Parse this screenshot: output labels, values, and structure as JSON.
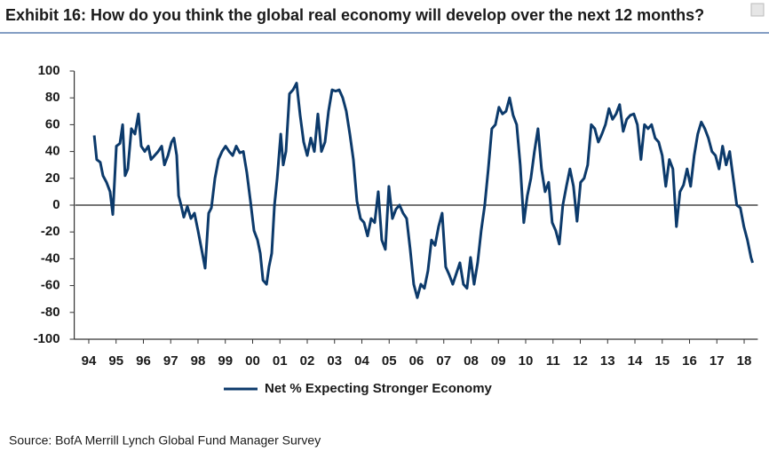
{
  "chart_data": {
    "type": "line",
    "title": "Exhibit 16: How do you think the global real economy will develop over the next 12 months?",
    "source": "Source: BofA Merrill Lynch Global Fund Manager Survey",
    "xlim": [
      1994,
      2019
    ],
    "xticks": [
      {
        "value": 1994.5,
        "label": "94"
      },
      {
        "value": 1995.5,
        "label": "95"
      },
      {
        "value": 1996.5,
        "label": "96"
      },
      {
        "value": 1997.5,
        "label": "97"
      },
      {
        "value": 1998.5,
        "label": "98"
      },
      {
        "value": 1999.5,
        "label": "99"
      },
      {
        "value": 2000.5,
        "label": "00"
      },
      {
        "value": 2001.5,
        "label": "01"
      },
      {
        "value": 2002.5,
        "label": "02"
      },
      {
        "value": 2003.5,
        "label": "03"
      },
      {
        "value": 2004.5,
        "label": "04"
      },
      {
        "value": 2005.5,
        "label": "05"
      },
      {
        "value": 2006.5,
        "label": "06"
      },
      {
        "value": 2007.5,
        "label": "07"
      },
      {
        "value": 2008.5,
        "label": "08"
      },
      {
        "value": 2009.5,
        "label": "09"
      },
      {
        "value": 2010.5,
        "label": "10"
      },
      {
        "value": 2011.5,
        "label": "11"
      },
      {
        "value": 2012.5,
        "label": "12"
      },
      {
        "value": 2013.5,
        "label": "13"
      },
      {
        "value": 2014.5,
        "label": "14"
      },
      {
        "value": 2015.5,
        "label": "15"
      },
      {
        "value": 2016.5,
        "label": "16"
      },
      {
        "value": 2017.5,
        "label": "17"
      },
      {
        "value": 2018.5,
        "label": "18"
      }
    ],
    "ylim": [
      -100,
      100
    ],
    "yticks": [
      -100,
      -80,
      -60,
      -40,
      -20,
      0,
      20,
      40,
      60,
      80,
      100
    ],
    "legend": "bottom",
    "x": [
      1994.7,
      1994.79,
      1994.92,
      1995.02,
      1995.15,
      1995.28,
      1995.38,
      1995.51,
      1995.64,
      1995.74,
      1995.83,
      1995.93,
      1996.06,
      1996.19,
      1996.32,
      1996.42,
      1996.55,
      1996.68,
      1996.78,
      1996.91,
      1997.04,
      1997.17,
      1997.27,
      1997.4,
      1997.53,
      1997.62,
      1997.72,
      1997.79,
      1997.88,
      1997.98,
      1998.11,
      1998.24,
      1998.37,
      1998.5,
      1998.66,
      1998.76,
      1998.89,
      1998.99,
      1999.12,
      1999.25,
      1999.38,
      1999.51,
      1999.64,
      1999.77,
      1999.9,
      2000.03,
      2000.16,
      2000.29,
      2000.42,
      2000.55,
      2000.68,
      2000.78,
      2000.88,
      2001.01,
      2001.1,
      2001.2,
      2001.3,
      2001.4,
      2001.53,
      2001.62,
      2001.72,
      2001.85,
      2001.98,
      2002.11,
      2002.24,
      2002.37,
      2002.5,
      2002.63,
      2002.76,
      2002.89,
      2003.02,
      2003.15,
      2003.28,
      2003.41,
      2003.54,
      2003.67,
      2003.8,
      2003.93,
      2004.06,
      2004.19,
      2004.32,
      2004.45,
      2004.58,
      2004.71,
      2004.84,
      2004.97,
      2005.1,
      2005.23,
      2005.36,
      2005.49,
      2005.62,
      2005.75,
      2005.88,
      2006.01,
      2006.14,
      2006.27,
      2006.4,
      2006.53,
      2006.66,
      2006.79,
      2006.92,
      2007.05,
      2007.18,
      2007.31,
      2007.44,
      2007.57,
      2007.7,
      2007.83,
      2007.96,
      2008.09,
      2008.22,
      2008.35,
      2008.48,
      2008.61,
      2008.74,
      2008.87,
      2009.0,
      2009.13,
      2009.26,
      2009.39,
      2009.52,
      2009.65,
      2009.78,
      2009.91,
      2010.04,
      2010.17,
      2010.3,
      2010.43,
      2010.56,
      2010.69,
      2010.82,
      2010.95,
      2011.08,
      2011.21,
      2011.34,
      2011.47,
      2011.6,
      2011.73,
      2011.86,
      2011.99,
      2012.12,
      2012.25,
      2012.38,
      2012.51,
      2012.64,
      2012.77,
      2012.9,
      2013.03,
      2013.16,
      2013.29,
      2013.42,
      2013.55,
      2013.68,
      2013.81,
      2013.94,
      2014.07,
      2014.2,
      2014.33,
      2014.46,
      2014.59,
      2014.72,
      2014.85,
      2014.98,
      2015.11,
      2015.24,
      2015.37,
      2015.5,
      2015.63,
      2015.76,
      2015.89,
      2016.02,
      2016.15,
      2016.28,
      2016.41,
      2016.54,
      2016.67,
      2016.8,
      2016.93,
      2017.06,
      2017.19,
      2017.32,
      2017.45,
      2017.58,
      2017.71,
      2017.84,
      2017.97,
      2018.1,
      2018.23,
      2018.36,
      2018.49,
      2018.62,
      2018.75,
      2018.81
    ],
    "series": [
      {
        "name": "Net % Expecting Stronger Economy",
        "color": "#0c3a6b",
        "values": [
          52,
          34,
          32,
          22,
          17,
          10,
          -7,
          44,
          46,
          60,
          22,
          27,
          57,
          53,
          68,
          44,
          40,
          44,
          34,
          37,
          40,
          44,
          30,
          37,
          47,
          50,
          37,
          7,
          0,
          -9,
          -1,
          -10,
          -6,
          -19,
          -36,
          -47,
          -6,
          -2,
          20,
          34,
          40,
          44,
          40,
          37,
          44,
          39,
          40,
          24,
          3,
          -19,
          -26,
          -36,
          -56,
          -59,
          -46,
          -36,
          0,
          20,
          53,
          30,
          40,
          83,
          86,
          91,
          67,
          47,
          37,
          50,
          40,
          68,
          40,
          47,
          70,
          86,
          85,
          86,
          80,
          70,
          53,
          34,
          3,
          -10,
          -13,
          -23,
          -10,
          -13,
          10,
          -26,
          -33,
          14,
          -10,
          -3,
          0,
          -6,
          -10,
          -33,
          -59,
          -69,
          -59,
          -62,
          -49,
          -26,
          -30,
          -16,
          -6,
          -46,
          -52,
          -59,
          -51,
          -43,
          -59,
          -62,
          -39,
          -59,
          -43,
          -19,
          0,
          27,
          57,
          60,
          73,
          68,
          70,
          80,
          67,
          60,
          30,
          -13,
          7,
          20,
          40,
          57,
          27,
          10,
          17,
          -13,
          -19,
          -29,
          0,
          14,
          27,
          14,
          -12,
          17,
          20,
          30,
          60,
          57,
          47,
          53,
          60,
          72,
          64,
          68,
          75,
          55,
          64,
          67,
          68,
          60,
          34,
          60,
          57,
          60,
          50,
          47,
          37,
          14,
          34,
          27,
          -16,
          10,
          15,
          27,
          14,
          37,
          53,
          62,
          57,
          50,
          40,
          37,
          27,
          44,
          30,
          40,
          20,
          0,
          -2,
          -16,
          -26,
          -39,
          -43
        ]
      }
    ]
  }
}
